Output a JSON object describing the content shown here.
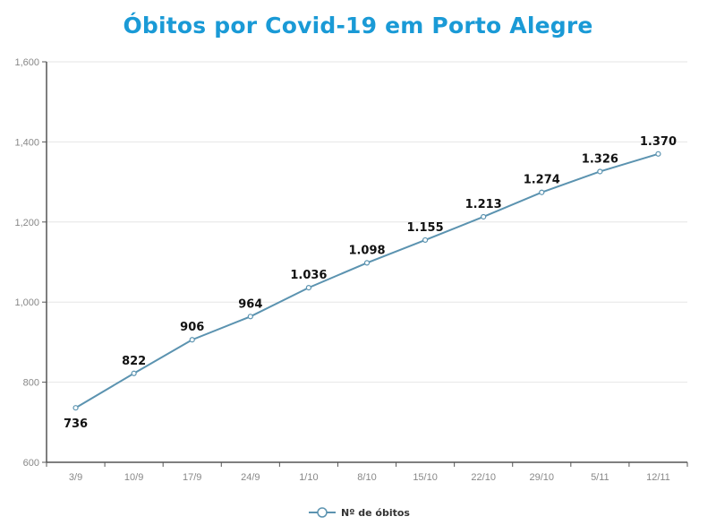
{
  "chart_data": {
    "type": "line",
    "title": "Óbitos por Covid-19 em Porto Alegre",
    "xlabel": "",
    "ylabel": "",
    "categories": [
      "3/9",
      "10/9",
      "17/9",
      "24/9",
      "1/10",
      "8/10",
      "15/10",
      "22/10",
      "29/10",
      "5/11",
      "12/11"
    ],
    "series": [
      {
        "name": "Nº de óbitos",
        "values": [
          736,
          822,
          906,
          964,
          1036,
          1098,
          1155,
          1213,
          1274,
          1326,
          1370
        ],
        "data_labels": [
          "736",
          "822",
          "906",
          "964",
          "1.036",
          "1.098",
          "1.155",
          "1.213",
          "1.274",
          "1.326",
          "1.370"
        ],
        "color": "#5b93b0"
      }
    ],
    "ylim": [
      600,
      1600
    ],
    "yticks": [
      600,
      800,
      1000,
      1200,
      1400,
      1600
    ],
    "ytick_labels": [
      "600",
      "800",
      "1,000",
      "1,200",
      "1,400",
      "1,600"
    ],
    "grid": true,
    "legend_position": "bottom"
  },
  "colors": {
    "title": "#1a9ad6",
    "line": "#5b93b0",
    "grid": "#e6e6e6",
    "axis": "#555555"
  }
}
